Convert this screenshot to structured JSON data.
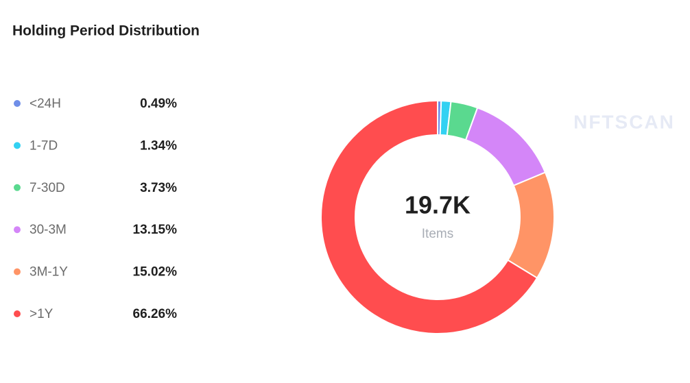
{
  "chart_data": {
    "type": "donut",
    "title": "Holding Period Distribution",
    "categories": [
      "<24H",
      "1-7D",
      "7-30D",
      "30-3M",
      "3M-1Y",
      ">1Y"
    ],
    "values": [
      0.49,
      1.34,
      3.73,
      13.15,
      15.02,
      66.26
    ],
    "value_labels": [
      "0.49%",
      "1.34%",
      "3.73%",
      "13.15%",
      "15.02%",
      "66.26%"
    ],
    "colors": [
      "#6f8ee8",
      "#33d1f2",
      "#5ad98f",
      "#d486f8",
      "#ff9466",
      "#ff4d4f"
    ],
    "center_value": "19.7K",
    "center_label": "Items",
    "watermark": "NFTSCAN"
  }
}
